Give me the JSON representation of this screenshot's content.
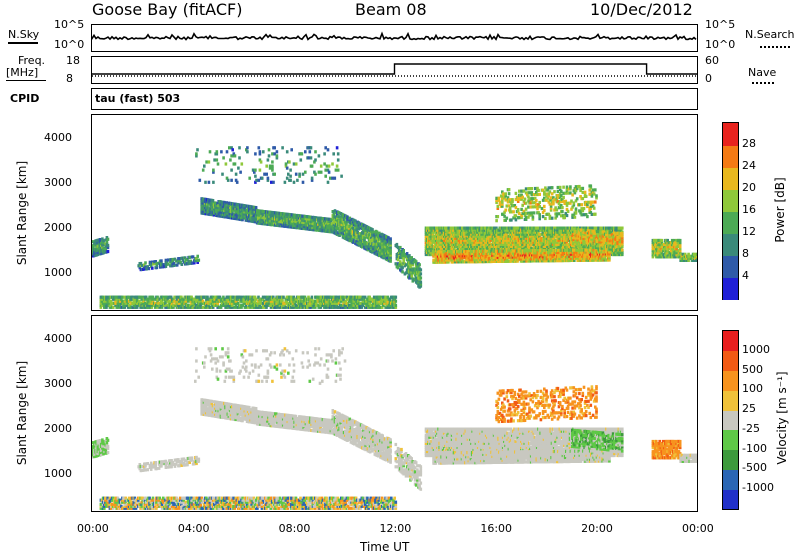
{
  "header": {
    "station": "Goose Bay (fitACF)",
    "beam": "Beam 08",
    "date": "10/Dec/2012"
  },
  "top_panels": {
    "nsky_label": "N.Sky",
    "nsearch_label": "N.Search",
    "noise_ticks": [
      "10^5",
      "10^0"
    ],
    "freq_label_line1": "Freq.",
    "freq_label_line2": "[MHz]",
    "freq_ticks": [
      "18",
      "8"
    ],
    "nave_label": "Nave",
    "nave_ticks": [
      "60",
      "0"
    ],
    "cpid_label": "CPID",
    "cpid_text": "tau (fast) 503"
  },
  "colors": {
    "power": [
      "#1f1fd6",
      "#2e5aa8",
      "#3a8a7a",
      "#4caa55",
      "#8fc83a",
      "#e8b81e",
      "#f47a14",
      "#e8231e"
    ],
    "velocity": [
      "#e81e1e",
      "#f25a14",
      "#f7931e",
      "#f0c23a",
      "#c8c8c0",
      "#5ec846",
      "#3c9a3c",
      "#2a66b4",
      "#2030c8"
    ]
  },
  "chart_data": [
    {
      "type": "heatmap",
      "name": "Power",
      "ylabel": "Slant Range [km]",
      "yticks": [
        "1000",
        "2000",
        "3000",
        "4000"
      ],
      "ylim": [
        180,
        4500
      ],
      "colorbar_label": "Power [dB]",
      "colorbar_ticks": [
        "4",
        "8",
        "12",
        "16",
        "20",
        "24",
        "28"
      ],
      "clim": [
        0,
        32
      ]
    },
    {
      "type": "heatmap",
      "name": "Velocity",
      "ylabel": "Slant Range [km]",
      "yticks": [
        "1000",
        "2000",
        "3000",
        "4000"
      ],
      "ylim": [
        180,
        4500
      ],
      "xlabel": "Time UT",
      "xticks": [
        "00:00",
        "04:00",
        "08:00",
        "12:00",
        "16:00",
        "20:00",
        "00:00"
      ],
      "colorbar_label": "Velocity [m s⁻¹]",
      "colorbar_ticks": [
        "1000",
        "500",
        "100",
        "25",
        "-25",
        "-100",
        "-500",
        "-1000"
      ]
    }
  ]
}
